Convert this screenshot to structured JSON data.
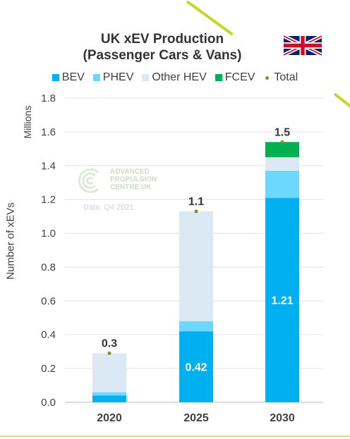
{
  "title_line1": "UK xEV Production",
  "title_line2": "(Passenger Cars & Vans)",
  "flag_icon": "uk-flag-icon",
  "watermark": {
    "line1": "ADVANCED",
    "line2": "PROPULSION",
    "line3": "CENTRE UK",
    "date": "Date: Q4 2021"
  },
  "legend": [
    {
      "label": "BEV",
      "color": "#00b0f0"
    },
    {
      "label": "PHEV",
      "color": "#6dd7ff"
    },
    {
      "label": "Other HEV",
      "color": "#dbe9f4"
    },
    {
      "label": "FCEV",
      "color": "#00b050"
    },
    {
      "label": "Total",
      "color": "#8b8b2a"
    }
  ],
  "chart_data": {
    "type": "bar",
    "stacked": true,
    "categories": [
      "2020",
      "2025",
      "2030"
    ],
    "series": [
      {
        "name": "BEV",
        "color": "#00b0f0",
        "values": [
          0.04,
          0.42,
          1.21
        ]
      },
      {
        "name": "PHEV",
        "color": "#6dd7ff",
        "values": [
          0.02,
          0.06,
          0.16
        ]
      },
      {
        "name": "Other HEV",
        "color": "#dbe9f4",
        "values": [
          0.23,
          0.65,
          0.08
        ]
      },
      {
        "name": "FCEV",
        "color": "#00b050",
        "values": [
          0,
          0,
          0.09
        ]
      }
    ],
    "totals": [
      0.29,
      1.13,
      1.54
    ],
    "total_labels": [
      "0.3",
      "1.1",
      "1.5"
    ],
    "data_labels": {
      "BEV": [
        "",
        "0.42",
        "1.21"
      ]
    },
    "ylabel": "Number of xEVs",
    "yunit": "Millions",
    "ylim": [
      0,
      1.8
    ],
    "yticks": [
      "0.0",
      "0.2",
      "0.4",
      "0.6",
      "0.8",
      "1.0",
      "1.2",
      "1.4",
      "1.6",
      "1.8"
    ],
    "grid": true,
    "legend_position": "top"
  }
}
